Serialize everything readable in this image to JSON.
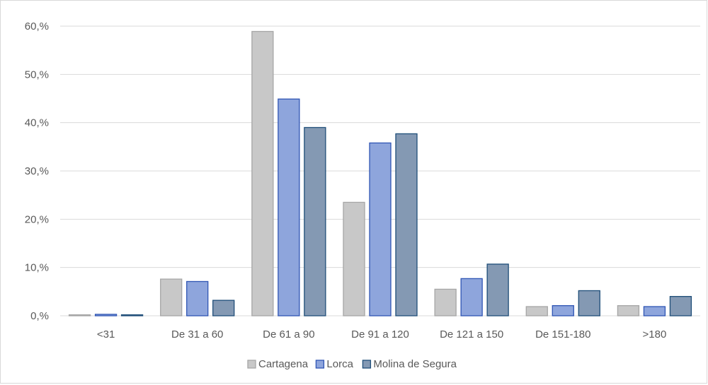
{
  "chart_data": {
    "type": "bar",
    "title": "",
    "xlabel": "",
    "ylabel": "",
    "categories": [
      "<31",
      "De 31 a 60",
      "De 61 a 90",
      "De 91 a 120",
      "De 121 a 150",
      "De 151-180",
      ">180"
    ],
    "series": [
      {
        "name": "Cartagena",
        "color": "#c8c8c8",
        "stroke": "#a6a6a6",
        "values": [
          0.2,
          7.6,
          58.9,
          23.5,
          5.5,
          1.9,
          2.1
        ]
      },
      {
        "name": "Lorca",
        "color": "#8ea5dc",
        "stroke": "#2f55b4",
        "values": [
          0.3,
          7.1,
          44.9,
          35.8,
          7.7,
          2.1,
          1.9
        ]
      },
      {
        "name": "Molina de Segura",
        "color": "#8499b3",
        "stroke": "#1f4e79",
        "values": [
          0.2,
          3.2,
          39.0,
          37.7,
          10.7,
          5.2,
          4.0
        ]
      }
    ],
    "y_ticks": [
      "0,%",
      "10,%",
      "20,%",
      "30,%",
      "40,%",
      "50,%",
      "60,%"
    ],
    "ylim": [
      0,
      60
    ],
    "y_tick_step": 10,
    "grid": true,
    "gridline_color": "#d9d9d9",
    "legend_position": "bottom"
  }
}
